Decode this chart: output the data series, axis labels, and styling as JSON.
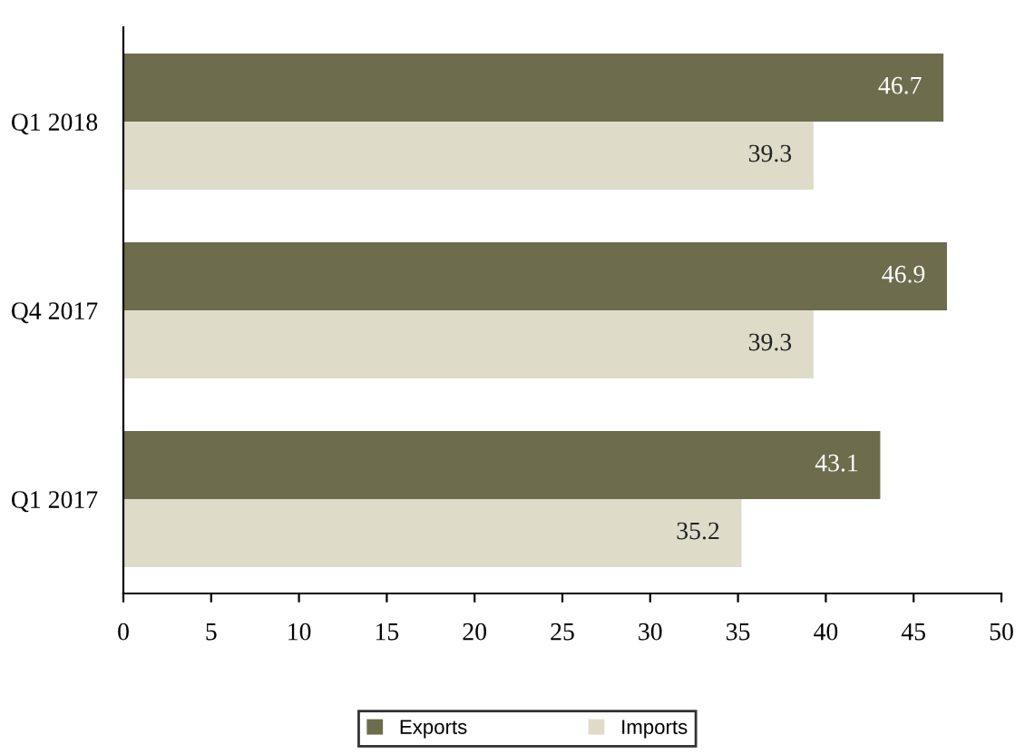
{
  "chart_data": {
    "type": "bar",
    "orientation": "horizontal",
    "categories": [
      "Q1 2018",
      "Q4 2017",
      "Q1 2017"
    ],
    "series": [
      {
        "name": "Exports",
        "color": "#6d6c4c",
        "values": [
          46.7,
          46.9,
          43.1
        ]
      },
      {
        "name": "Imports",
        "color": "#dedcc9",
        "values": [
          39.3,
          39.3,
          35.2
        ]
      }
    ],
    "xlim": [
      0,
      50
    ],
    "xticks": [
      0,
      5,
      10,
      15,
      20,
      25,
      30,
      35,
      40,
      45,
      50
    ],
    "data_labels": true,
    "grid": false,
    "legend": "bottom"
  }
}
